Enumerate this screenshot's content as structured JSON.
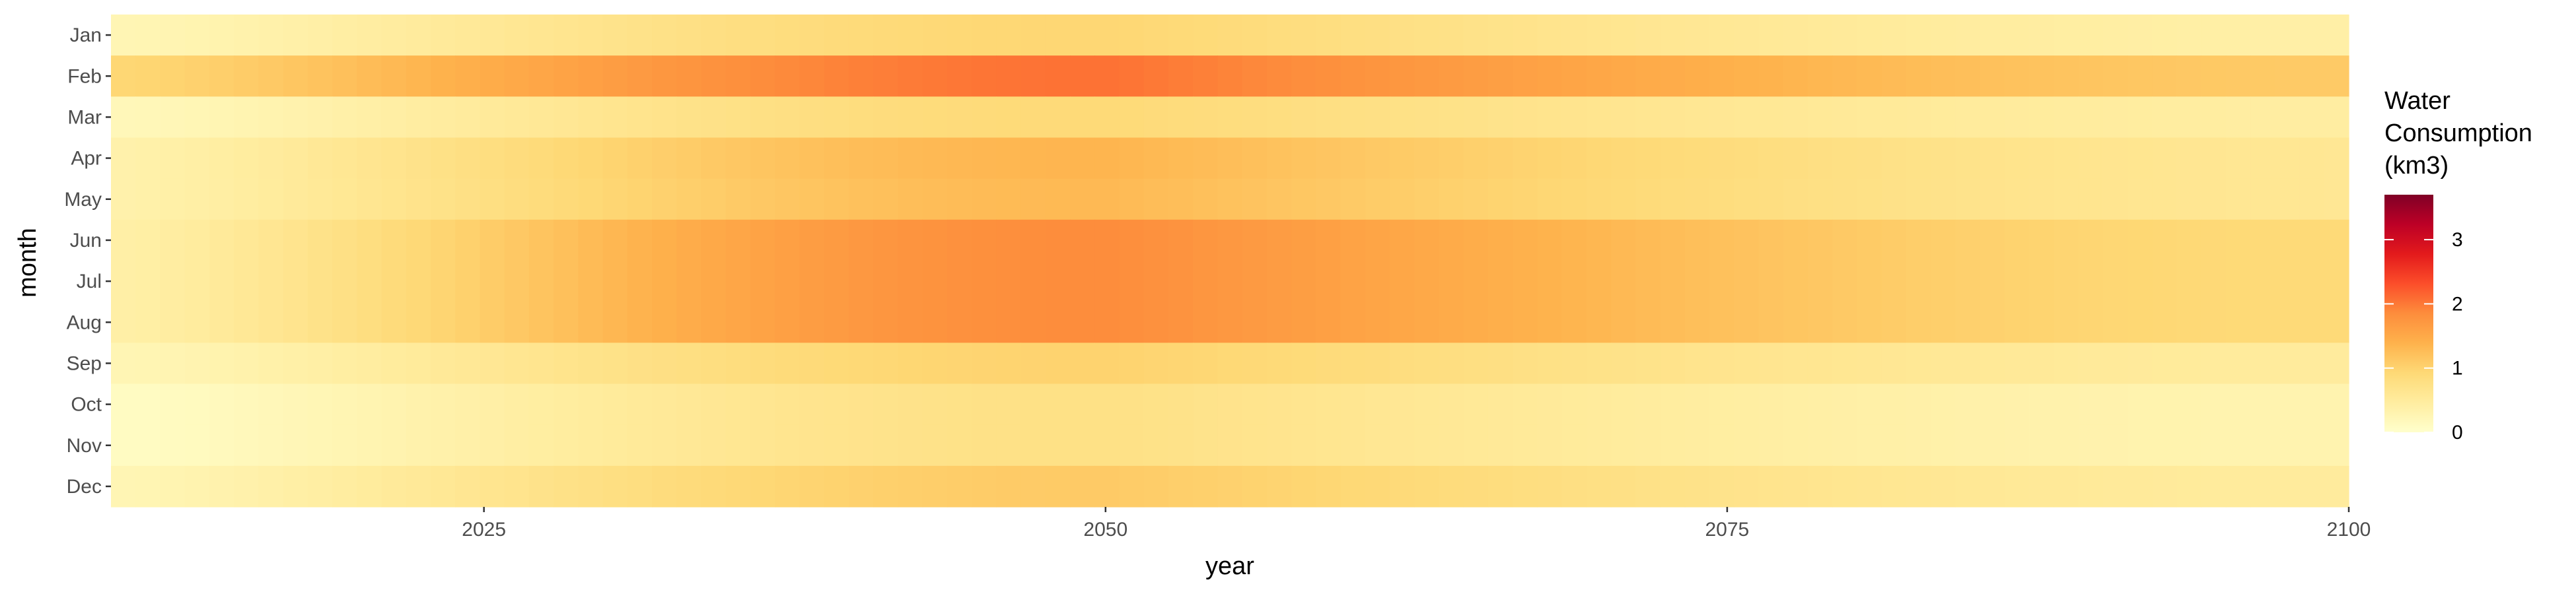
{
  "chart_data": {
    "type": "heatmap",
    "title": "",
    "xlabel": "year",
    "ylabel": "month",
    "x_range": [
      2010,
      2100
    ],
    "x_ticks": [
      2025,
      2050,
      2075,
      2100
    ],
    "months": [
      "Jan",
      "Feb",
      "Mar",
      "Apr",
      "May",
      "Jun",
      "Jul",
      "Aug",
      "Sep",
      "Oct",
      "Nov",
      "Dec"
    ],
    "month_peak_2050": [
      0.95,
      2.05,
      0.9,
      1.35,
      1.3,
      1.85,
      1.85,
      1.85,
      1.0,
      0.75,
      0.75,
      1.1
    ],
    "month_2010": [
      0.25,
      0.95,
      0.2,
      0.35,
      0.35,
      0.4,
      0.4,
      0.4,
      0.25,
      0.1,
      0.1,
      0.25
    ],
    "month_2100": [
      0.4,
      1.1,
      0.45,
      0.6,
      0.6,
      0.9,
      0.9,
      0.9,
      0.5,
      0.3,
      0.3,
      0.5
    ],
    "legend": {
      "title_lines": [
        "Water",
        "Consumption",
        "(km3)"
      ],
      "ticks": [
        0,
        1,
        2,
        3
      ],
      "range": [
        0,
        3.7
      ],
      "colormap": "YlOrRd",
      "colors": [
        "#ffffcc",
        "#ffeda0",
        "#fed976",
        "#feb24c",
        "#fd8d3c",
        "#fc4e2a",
        "#e31a1c",
        "#bd0026",
        "#800026"
      ]
    }
  }
}
